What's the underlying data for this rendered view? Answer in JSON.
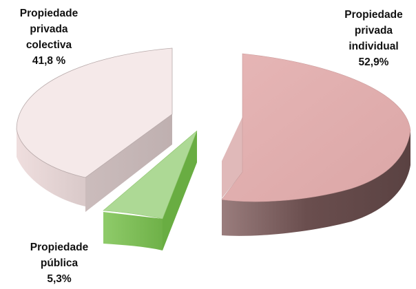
{
  "chart_data": {
    "type": "pie",
    "variant": "3d-exploded",
    "title": "",
    "slices": [
      {
        "name": "Propiedade privada individual",
        "label_lines": [
          "Propiedade",
          "privada",
          "individual"
        ],
        "value_label": "52,9%",
        "value": 52.9,
        "color": "#e3b0b0",
        "side_color": "#6e5252"
      },
      {
        "name": "Propiedade privada colectiva",
        "label_lines": [
          "Propiedade",
          "privada",
          "colectiva"
        ],
        "value_label": "41,8 %",
        "value": 41.8,
        "color": "#f4e6e6",
        "side_color": "#c8b8b8"
      },
      {
        "name": "Propiedade pública",
        "label_lines": [
          "Propiedade",
          "pública"
        ],
        "value_label": "5,3%",
        "value": 5.3,
        "color": "#a9d68e",
        "side_color": "#7dbb55"
      }
    ],
    "legend": "none"
  }
}
